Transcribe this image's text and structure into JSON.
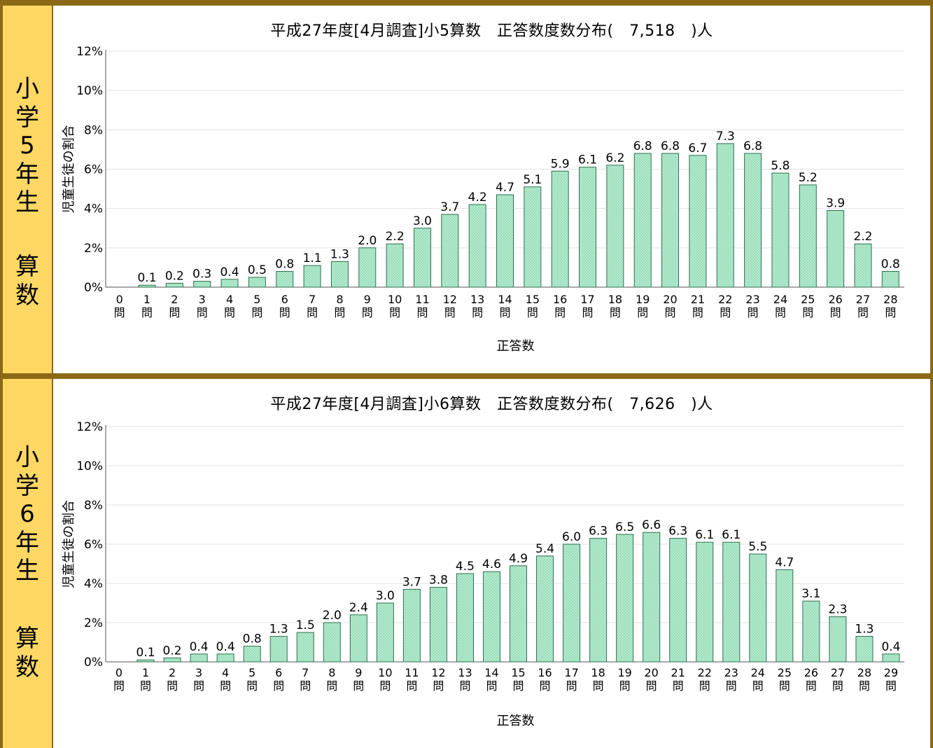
{
  "colors": {
    "frame": "#8b6914",
    "label_bg": "#ffd764",
    "bar_fill": "#b6ecd1",
    "bar_stroke": "#2e6f4f",
    "grid": "#e3e3e3"
  },
  "panels": [
    {
      "label_top": [
        "小",
        "学",
        "5",
        "年",
        "生"
      ],
      "label_bottom": [
        "算",
        "数"
      ],
      "title": "平成27年度[4月調査]小5算数　正答数度数分布(　7,518　)人",
      "question_unit": "問"
    },
    {
      "label_top": [
        "小",
        "学",
        "6",
        "年",
        "生"
      ],
      "label_bottom": [
        "算",
        "数"
      ],
      "title": "平成27年度[4月調査]小6算数　正答数度数分布(　7,626　)人",
      "question_unit": "問"
    }
  ],
  "chart_data": [
    {
      "type": "bar",
      "title": "平成27年度[4月調査]小5算数　正答数度数分布(　7,518　)人",
      "xlabel": "正答数",
      "ylabel": "児童生徒の割合",
      "ylim": [
        0,
        12
      ],
      "yticks": [
        "0%",
        "2%",
        "4%",
        "6%",
        "8%",
        "10%",
        "12%"
      ],
      "grid": true,
      "categories": [
        "0",
        "1",
        "2",
        "3",
        "4",
        "5",
        "6",
        "7",
        "8",
        "9",
        "10",
        "11",
        "12",
        "13",
        "14",
        "15",
        "16",
        "17",
        "18",
        "19",
        "20",
        "21",
        "22",
        "23",
        "24",
        "25",
        "26",
        "27",
        "28"
      ],
      "values": [
        0,
        0.1,
        0.2,
        0.3,
        0.4,
        0.5,
        0.8,
        1.1,
        1.3,
        2.0,
        2.2,
        3.0,
        3.7,
        4.2,
        4.7,
        5.1,
        5.9,
        6.1,
        6.2,
        6.8,
        6.8,
        6.7,
        7.3,
        6.8,
        5.8,
        5.2,
        3.9,
        2.2,
        0.8
      ],
      "value_labels": [
        "",
        "0.1",
        "0.2",
        "0.3",
        "0.4",
        "0.5",
        "0.8",
        "1.1",
        "1.3",
        "2.0",
        "2.2",
        "3.0",
        "3.7",
        "4.2",
        "4.7",
        "5.1",
        "5.9",
        "6.1",
        "6.2",
        "6.8",
        "6.8",
        "6.7",
        "7.3",
        "6.8",
        "5.8",
        "5.2",
        "3.9",
        "2.2",
        "0.8"
      ]
    },
    {
      "type": "bar",
      "title": "平成27年度[4月調査]小6算数　正答数度数分布(　7,626　)人",
      "xlabel": "正答数",
      "ylabel": "児童生徒の割合",
      "ylim": [
        0,
        12
      ],
      "yticks": [
        "0%",
        "2%",
        "4%",
        "6%",
        "8%",
        "10%",
        "12%"
      ],
      "grid": true,
      "categories": [
        "0",
        "1",
        "2",
        "3",
        "4",
        "5",
        "6",
        "7",
        "8",
        "9",
        "10",
        "11",
        "12",
        "13",
        "14",
        "15",
        "16",
        "17",
        "18",
        "19",
        "20",
        "21",
        "22",
        "23",
        "24",
        "25",
        "26",
        "27",
        "28",
        "29"
      ],
      "values": [
        0,
        0.1,
        0.2,
        0.4,
        0.4,
        0.8,
        1.3,
        1.5,
        2.0,
        2.4,
        3.0,
        3.7,
        3.8,
        4.5,
        4.6,
        4.9,
        5.4,
        6.0,
        6.3,
        6.5,
        6.6,
        6.3,
        6.1,
        6.1,
        5.5,
        4.7,
        3.1,
        2.3,
        1.3,
        0.4
      ],
      "value_labels": [
        "",
        "0.1",
        "0.2",
        "0.4",
        "0.4",
        "0.8",
        "1.3",
        "1.5",
        "2.0",
        "2.4",
        "3.0",
        "3.7",
        "3.8",
        "4.5",
        "4.6",
        "4.9",
        "5.4",
        "6.0",
        "6.3",
        "6.5",
        "6.6",
        "6.3",
        "6.1",
        "6.1",
        "5.5",
        "4.7",
        "3.1",
        "2.3",
        "1.3",
        "0.4"
      ]
    }
  ]
}
